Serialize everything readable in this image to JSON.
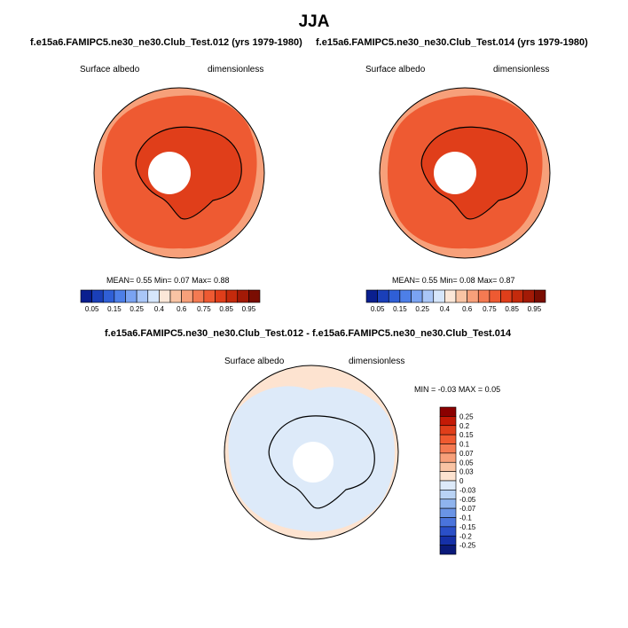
{
  "title": "JJA",
  "chart_data": [
    {
      "type": "heatmap",
      "title": "f.e15a6.FAMIPC5.ne30_ne30.Club_Test.012 (yrs 1979-1980)",
      "left_label": "Surface albedo",
      "right_label": "dimensionless",
      "stats": {
        "mean_label": "MEAN=",
        "mean": "0.55",
        "min_label": "Min=",
        "min": "0.07",
        "max_label": "Max=",
        "max": "0.88"
      },
      "colorbar_ticks": [
        "0.05",
        "0.15",
        "0.25",
        "0.4",
        "0.6",
        "0.75",
        "0.85",
        "0.95"
      ],
      "colorbar_colors": [
        "#0a1f8f",
        "#1a3fb8",
        "#2f5fd6",
        "#4d7fe8",
        "#7aa3f2",
        "#a9c6f7",
        "#d6e6fb",
        "#fbe7d8",
        "#f9c4a4",
        "#f7a07a",
        "#f47a52",
        "#ee5a32",
        "#e03e1a",
        "#c42a0c",
        "#a31a06",
        "#7a0d02"
      ]
    },
    {
      "type": "heatmap",
      "title": "f.e15a6.FAMIPC5.ne30_ne30.Club_Test.014 (yrs 1979-1980)",
      "left_label": "Surface albedo",
      "right_label": "dimensionless",
      "stats": {
        "mean_label": "MEAN=",
        "mean": "0.55",
        "min_label": "Min=",
        "min": "0.08",
        "max_label": "Max=",
        "max": "0.87"
      },
      "colorbar_ticks": [
        "0.05",
        "0.15",
        "0.25",
        "0.4",
        "0.6",
        "0.75",
        "0.85",
        "0.95"
      ],
      "colorbar_colors": [
        "#0a1f8f",
        "#1a3fb8",
        "#2f5fd6",
        "#4d7fe8",
        "#7aa3f2",
        "#a9c6f7",
        "#d6e6fb",
        "#fbe7d8",
        "#f9c4a4",
        "#f7a07a",
        "#f47a52",
        "#ee5a32",
        "#e03e1a",
        "#c42a0c",
        "#a31a06",
        "#7a0d02"
      ]
    },
    {
      "type": "heatmap",
      "title": "f.e15a6.FAMIPC5.ne30_ne30.Club_Test.012 - f.e15a6.FAMIPC5.ne30_ne30.Club_Test.014",
      "left_label": "Surface albedo",
      "right_label": "dimensionless",
      "stats": {
        "min_label": "MIN =",
        "min": "-0.03",
        "max_label": "MAX =",
        "max": "0.05"
      },
      "colorbar_ticks": [
        "0.25",
        "0.2",
        "0.15",
        "0.1",
        "0.07",
        "0.05",
        "0.03",
        "0",
        "-0.03",
        "-0.05",
        "-0.07",
        "-0.1",
        "-0.15",
        "-0.2",
        "-0.25"
      ],
      "colorbar_colors": [
        "#8b0000",
        "#c41a06",
        "#e03e1a",
        "#f05a30",
        "#f47a52",
        "#f7a07a",
        "#f9c4a4",
        "#fde3d0",
        "#ddeaf9",
        "#b9d3f5",
        "#8fb4ee",
        "#6a94e6",
        "#4a74dc",
        "#2a4fc8",
        "#1530a8",
        "#0a1a7a"
      ]
    }
  ]
}
